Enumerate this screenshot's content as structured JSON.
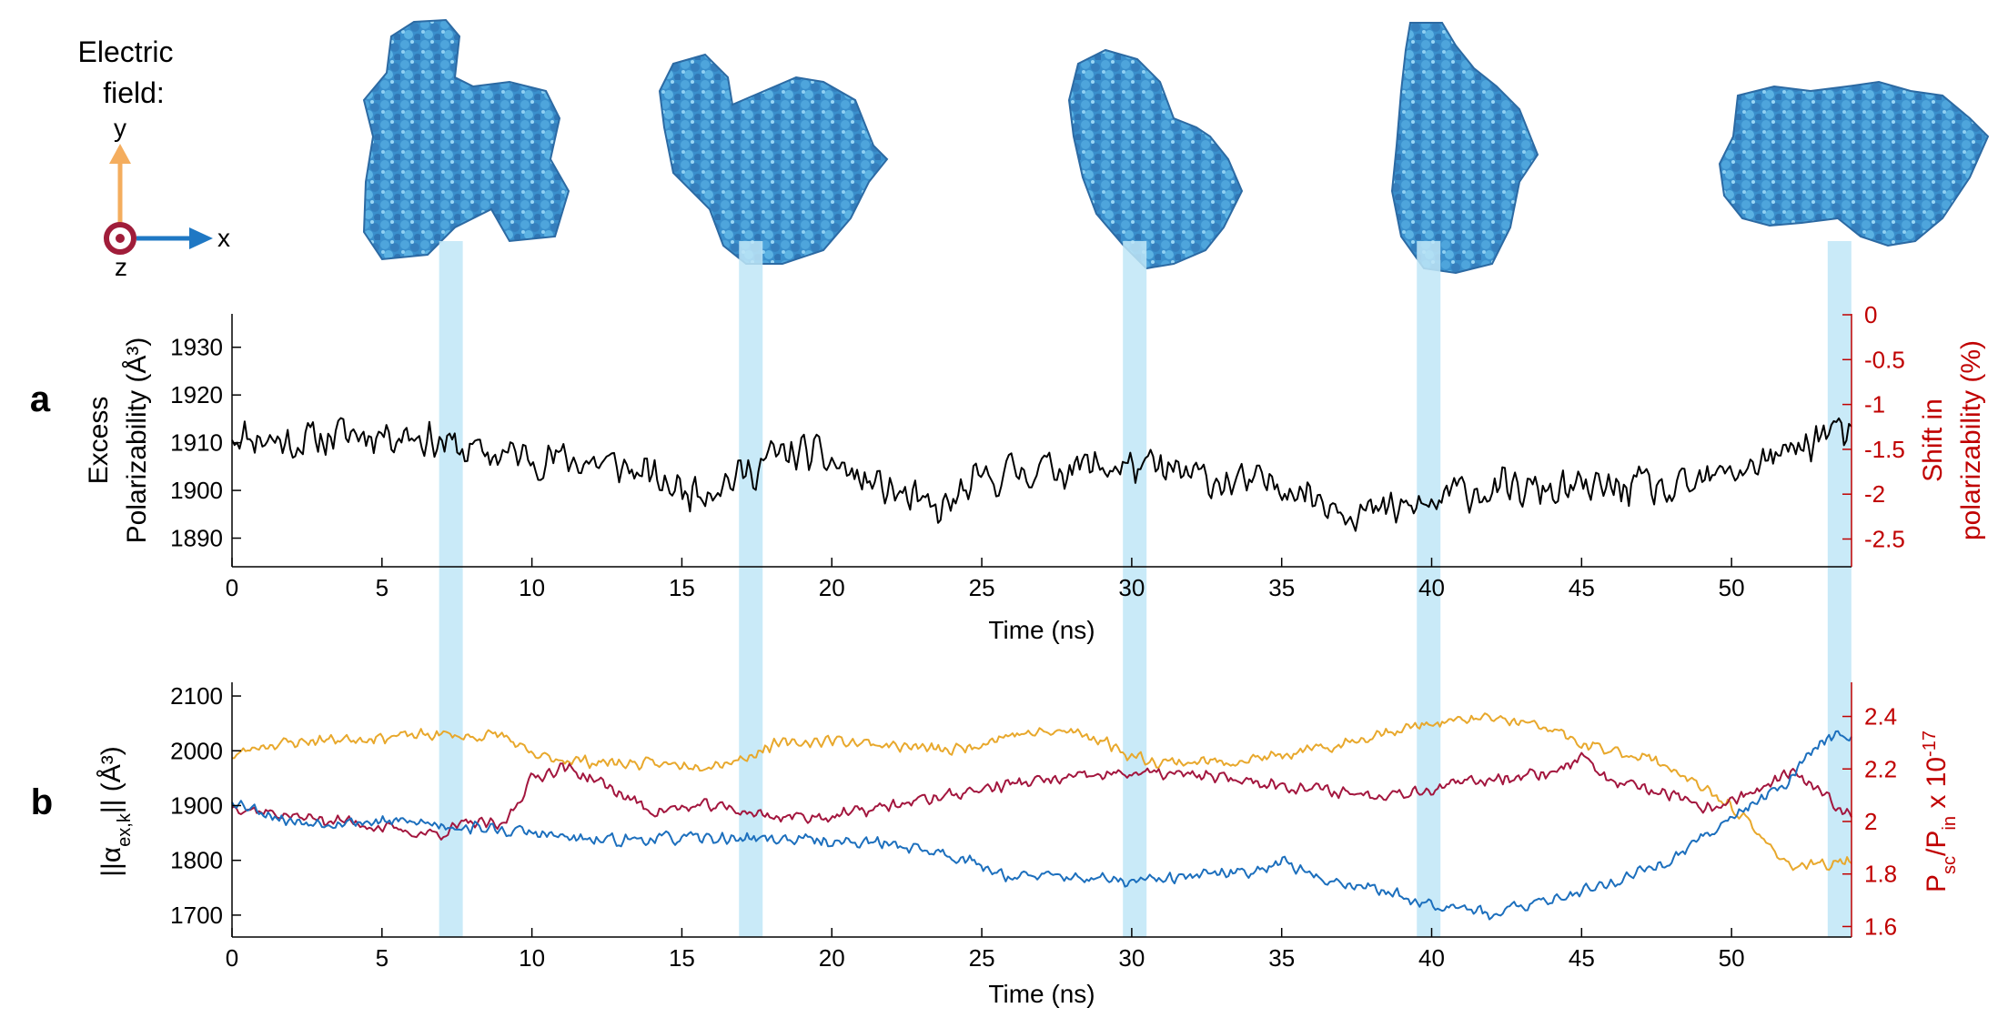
{
  "legend": {
    "line1": "Electric",
    "line2": "field:",
    "axis_y": "y",
    "axis_x": "x",
    "axis_z": "z"
  },
  "colors": {
    "black": "#000000",
    "red_axis": "#c00000",
    "orange": "#e8a82c",
    "crimson": "#a3163e",
    "blue": "#1c6fbd",
    "highlight": "#bfe6f7",
    "protein": "#3f9ad2",
    "arrow_y": "#f4ad5e",
    "arrow_x": "#1f78c4",
    "dot": "#a01d3a"
  },
  "chart_data": [
    {
      "panel": "a",
      "type": "line",
      "xlabel": "Time (ns)",
      "ylabel_line1": "Excess",
      "ylabel_line2": "Polarizability (Å³)",
      "ylabel_right_line1": "Shift in",
      "ylabel_right_line2": "polarizability (%)",
      "xlim": [
        0,
        54
      ],
      "ylim": [
        1884,
        1937
      ],
      "xticks": [
        "0",
        "5",
        "10",
        "15",
        "20",
        "25",
        "30",
        "35",
        "40",
        "45",
        "50"
      ],
      "yticks": [
        "1890",
        "1900",
        "1910",
        "1920",
        "1930"
      ],
      "yticks_right": [
        "0",
        "-0.5",
        "-1",
        "-1.5",
        "-2",
        "-2.5"
      ],
      "highlight_x": [
        7.3,
        17.3,
        30.1,
        39.9,
        53.6
      ],
      "series": [
        {
          "name": "Excess polarizability",
          "color": "#000000",
          "anchors": [
            [
              0,
              1912
            ],
            [
              2,
              1910
            ],
            [
              4,
              1912
            ],
            [
              6,
              1912
            ],
            [
              8,
              1908
            ],
            [
              10,
              1907
            ],
            [
              12,
              1906
            ],
            [
              13,
              1905
            ],
            [
              15,
              1900
            ],
            [
              16,
              1901
            ],
            [
              17,
              1903
            ],
            [
              18,
              1907
            ],
            [
              19,
              1908
            ],
            [
              20,
              1906
            ],
            [
              21,
              1902
            ],
            [
              22,
              1900
            ],
            [
              23.5,
              1895
            ],
            [
              25,
              1902
            ],
            [
              26,
              1904
            ],
            [
              28,
              1905
            ],
            [
              30,
              1905
            ],
            [
              32,
              1903
            ],
            [
              34,
              1901
            ],
            [
              35,
              1902
            ],
            [
              36,
              1899
            ],
            [
              37,
              1897
            ],
            [
              38,
              1895
            ],
            [
              40,
              1897
            ],
            [
              41,
              1900
            ],
            [
              43,
              1900
            ],
            [
              45,
              1900
            ],
            [
              47,
              1901
            ],
            [
              48,
              1899
            ],
            [
              50,
              1904
            ],
            [
              52,
              1908
            ],
            [
              53.3,
              1913
            ],
            [
              54,
              1910
            ]
          ],
          "noise": 5,
          "seed": 11
        }
      ]
    },
    {
      "panel": "b",
      "type": "line",
      "xlabel": "Time (ns)",
      "ylabel": "||α_ex,k|| (Å³)",
      "ylabel_main": "||α",
      "ylabel_sub": "ex,k",
      "ylabel_tail": "|| (Å³)",
      "ylabel_right": "P_sc/P_in x 10^-17",
      "ylabel_right_p1": "P",
      "ylabel_right_sub1": "sc",
      "ylabel_right_p2": "/P",
      "ylabel_right_sub2": "in",
      "ylabel_right_p3": " x 10",
      "ylabel_right_sup": "-17",
      "xlim": [
        0,
        54
      ],
      "ylim": [
        1660,
        2125
      ],
      "ylim_right": [
        1.56,
        2.53
      ],
      "xticks": [
        "0",
        "5",
        "10",
        "15",
        "20",
        "25",
        "30",
        "35",
        "40",
        "45",
        "50"
      ],
      "yticks": [
        "1700",
        "1800",
        "1900",
        "2000",
        "2100"
      ],
      "yticks_right": [
        "1.6",
        "1.8",
        "2",
        "2.2",
        "2.4"
      ],
      "highlight_x": [
        7.3,
        17.3,
        30.1,
        39.9,
        53.6
      ],
      "series": [
        {
          "name": "x component",
          "color": "#e8a82c",
          "anchors": [
            [
              0,
              1990
            ],
            [
              1,
              2010
            ],
            [
              3,
              2020
            ],
            [
              5,
              2025
            ],
            [
              7,
              2030
            ],
            [
              8,
              2025
            ],
            [
              9,
              2030
            ],
            [
              10,
              1990
            ],
            [
              12,
              1980
            ],
            [
              14,
              1975
            ],
            [
              16,
              1975
            ],
            [
              17,
              1985
            ],
            [
              18,
              2010
            ],
            [
              20,
              2020
            ],
            [
              22,
              2010
            ],
            [
              24,
              2000
            ],
            [
              26,
              2030
            ],
            [
              28,
              2035
            ],
            [
              29,
              2020
            ],
            [
              30,
              1990
            ],
            [
              31,
              1980
            ],
            [
              33,
              1980
            ],
            [
              35,
              1990
            ],
            [
              36,
              2000
            ],
            [
              37,
              2010
            ],
            [
              38,
              2030
            ],
            [
              40,
              2050
            ],
            [
              42,
              2060
            ],
            [
              44,
              2040
            ],
            [
              45,
              2010
            ],
            [
              46,
              2000
            ],
            [
              47,
              1990
            ],
            [
              48,
              1970
            ],
            [
              49,
              1930
            ],
            [
              50,
              1900
            ],
            [
              51,
              1840
            ],
            [
              52,
              1790
            ],
            [
              53,
              1790
            ],
            [
              54,
              1800
            ]
          ],
          "noise": 13,
          "seed": 23
        },
        {
          "name": "y component",
          "color": "#a3163e",
          "anchors": [
            [
              0,
              1900
            ],
            [
              2,
              1880
            ],
            [
              4,
              1870
            ],
            [
              6,
              1850
            ],
            [
              7,
              1850
            ],
            [
              8,
              1870
            ],
            [
              9,
              1860
            ],
            [
              10,
              1950
            ],
            [
              11,
              1970
            ],
            [
              12,
              1950
            ],
            [
              13,
              1920
            ],
            [
              14,
              1890
            ],
            [
              16,
              1900
            ],
            [
              17,
              1890
            ],
            [
              18,
              1880
            ],
            [
              20,
              1880
            ],
            [
              22,
              1900
            ],
            [
              24,
              1920
            ],
            [
              25,
              1930
            ],
            [
              26,
              1940
            ],
            [
              28,
              1950
            ],
            [
              30,
              1960
            ],
            [
              32,
              1955
            ],
            [
              34,
              1945
            ],
            [
              36,
              1930
            ],
            [
              38,
              1920
            ],
            [
              40,
              1930
            ],
            [
              42,
              1950
            ],
            [
              44,
              1960
            ],
            [
              45,
              1990
            ],
            [
              46,
              1940
            ],
            [
              47,
              1930
            ],
            [
              48,
              1920
            ],
            [
              49,
              1890
            ],
            [
              50,
              1910
            ],
            [
              51,
              1930
            ],
            [
              52,
              1960
            ],
            [
              53,
              1920
            ],
            [
              54,
              1880
            ]
          ],
          "noise": 14,
          "seed": 37
        },
        {
          "name": "z component",
          "color": "#1c6fbd",
          "anchors": [
            [
              0,
              1910
            ],
            [
              2,
              1870
            ],
            [
              4,
              1870
            ],
            [
              6,
              1870
            ],
            [
              8,
              1860
            ],
            [
              10,
              1850
            ],
            [
              12,
              1835
            ],
            [
              14,
              1840
            ],
            [
              16,
              1840
            ],
            [
              18,
              1840
            ],
            [
              20,
              1835
            ],
            [
              22,
              1830
            ],
            [
              24,
              1810
            ],
            [
              25,
              1790
            ],
            [
              26,
              1770
            ],
            [
              28,
              1770
            ],
            [
              30,
              1760
            ],
            [
              32,
              1770
            ],
            [
              34,
              1780
            ],
            [
              35,
              1800
            ],
            [
              36,
              1770
            ],
            [
              38,
              1750
            ],
            [
              40,
              1720
            ],
            [
              41,
              1720
            ],
            [
              42,
              1700
            ],
            [
              44,
              1730
            ],
            [
              46,
              1760
            ],
            [
              48,
              1800
            ],
            [
              50,
              1880
            ],
            [
              52,
              1950
            ],
            [
              53,
              2020
            ],
            [
              54,
              2030
            ]
          ],
          "noise": 14,
          "seed": 53
        }
      ]
    }
  ]
}
